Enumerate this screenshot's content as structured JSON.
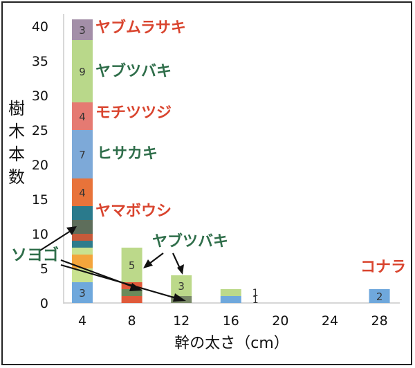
{
  "chart_data": {
    "type": "bar",
    "stacked": true,
    "xlabel": "幹の太さ（cm）",
    "ylabel": "樹木本数",
    "x_ticks": [
      "4",
      "8",
      "12",
      "16",
      "20",
      "24",
      "28"
    ],
    "y_ticks": [
      "0",
      "5",
      "10",
      "15",
      "20",
      "25",
      "30",
      "35",
      "40"
    ],
    "ylim": [
      0,
      41
    ],
    "grid": false,
    "stacks": [
      {
        "x": "4",
        "segments": [
          {
            "value": 3,
            "color": "#6fa8dc",
            "label": "3"
          },
          {
            "value": 2,
            "color": "#c9e28f",
            "label": ""
          },
          {
            "value": 2,
            "color": "#f4a53c",
            "label": ""
          },
          {
            "value": 1,
            "color": "#c9e28f",
            "label": ""
          },
          {
            "value": 1,
            "color": "#2e7c8c",
            "label": ""
          },
          {
            "value": 1,
            "color": "#c75a3a",
            "label": ""
          },
          {
            "value": 2,
            "color": "#5e6e5b",
            "label": ""
          },
          {
            "value": 2,
            "color": "#2a7a8c",
            "label": ""
          },
          {
            "value": 4,
            "color": "#e8733a",
            "label": "4"
          },
          {
            "value": 7,
            "color": "#7da9d8",
            "label": "7"
          },
          {
            "value": 4,
            "color": "#e57a72",
            "label": "4"
          },
          {
            "value": 9,
            "color": "#b9d88a",
            "label": "9"
          },
          {
            "value": 3,
            "color": "#a38fa8",
            "label": "3"
          }
        ]
      },
      {
        "x": "8",
        "segments": [
          {
            "value": 1,
            "color": "#e05a3a",
            "label": ""
          },
          {
            "value": 1,
            "color": "#6b8a5a",
            "label": ""
          },
          {
            "value": 1,
            "color": "#e05a3a",
            "label": ""
          },
          {
            "value": 5,
            "color": "#bcd98a",
            "label": "5"
          }
        ]
      },
      {
        "x": "12",
        "segments": [
          {
            "value": 1,
            "color": "#7a8a68",
            "label": ""
          },
          {
            "value": 3,
            "color": "#bcd98a",
            "label": "3"
          }
        ]
      },
      {
        "x": "16",
        "segments": [
          {
            "value": 1,
            "color": "#6fa8dc",
            "label": "",
            "side_label": "1"
          },
          {
            "value": 1,
            "color": "#bcd98a",
            "label": "",
            "side_label": "1"
          }
        ]
      },
      {
        "x": "28",
        "segments": [
          {
            "value": 2,
            "color": "#6fa8dc",
            "label": "2"
          }
        ]
      }
    ],
    "species_labels": [
      {
        "text": "ヤブムラサキ",
        "color": "#d9442e"
      },
      {
        "text": "ヤブツバキ",
        "color": "#2f6e4a"
      },
      {
        "text": "モチツツジ",
        "color": "#d9442e"
      },
      {
        "text": "ヒサカキ",
        "color": "#2f6e4a"
      },
      {
        "text": "ヤマボウシ",
        "color": "#d9442e"
      },
      {
        "text": "ヤブツバキ",
        "color": "#2f6e4a"
      },
      {
        "text": "ソヨゴ",
        "color": "#2f6e4a"
      },
      {
        "text": "コナラ",
        "color": "#d9442e"
      }
    ]
  }
}
